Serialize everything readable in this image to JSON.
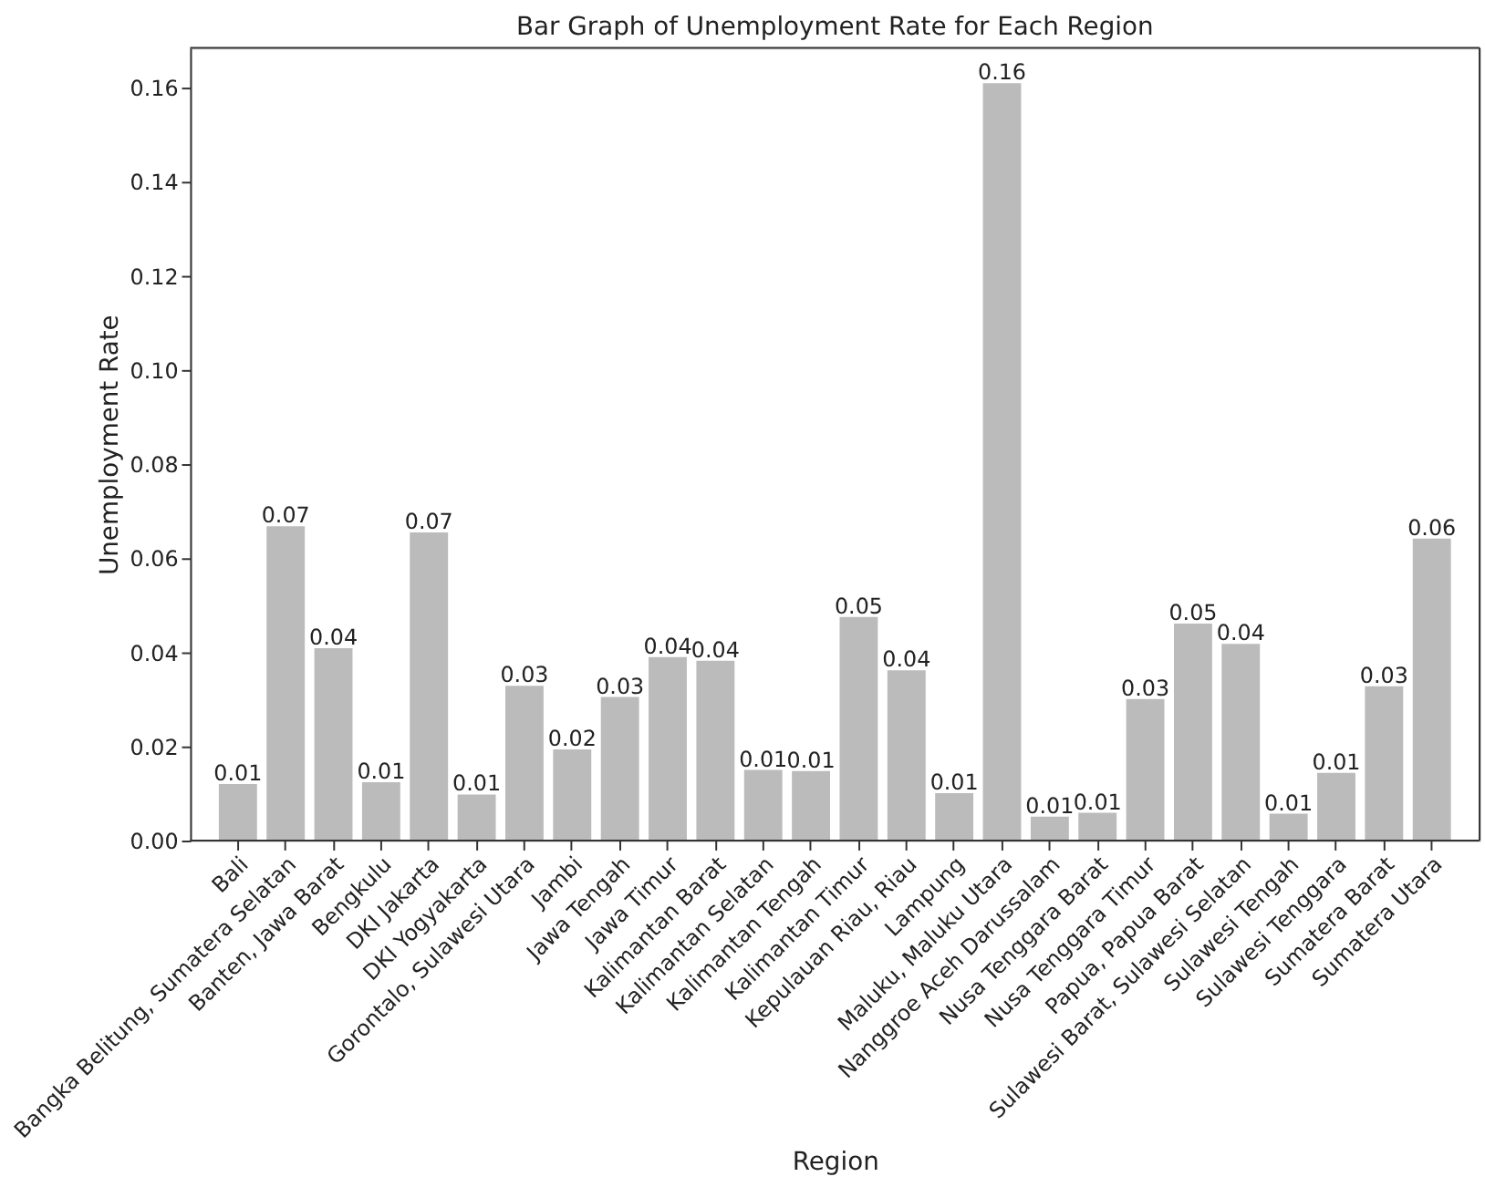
{
  "chart_data": {
    "type": "bar",
    "title": "Bar Graph of Unemployment Rate for Each Region",
    "xlabel": "Region",
    "ylabel": "Unemployment Rate",
    "categories": [
      "Bali",
      "Bangka Belitung, Sumatera Selatan",
      "Banten, Jawa Barat",
      "Bengkulu",
      "DKI Jakarta",
      "DKI Yogyakarta",
      "Gorontalo, Sulawesi Utara",
      "Jambi",
      "Jawa Tengah",
      "Jawa Timur",
      "Kalimantan Barat",
      "Kalimantan Selatan",
      "Kalimantan Tengah",
      "Kalimantan Timur",
      "Kepulauan Riau, Riau",
      "Lampung",
      "Maluku, Maluku Utara",
      "Nanggroe Aceh Darussalam",
      "Nusa Tenggara Barat",
      "Nusa Tenggara Timur",
      "Papua, Papua Barat",
      "Sulawesi Barat, Sulawesi Selatan",
      "Sulawesi Tengah",
      "Sulawesi Tenggara",
      "Sumatera Barat",
      "Sumatera Utara"
    ],
    "values": [
      0.012,
      0.0668,
      0.0409,
      0.0124,
      0.0655,
      0.0098,
      0.0329,
      0.0194,
      0.0305,
      0.039,
      0.0382,
      0.015,
      0.0148,
      0.0475,
      0.0362,
      0.0101,
      0.161,
      0.0051,
      0.0059,
      0.0301,
      0.0461,
      0.0418,
      0.0057,
      0.0144,
      0.0328,
      0.0642
    ],
    "value_labels": [
      "0.01",
      "0.07",
      "0.04",
      "0.01",
      "0.07",
      "0.01",
      "0.03",
      "0.02",
      "0.03",
      "0.04",
      "0.04",
      "0.01",
      "0.01",
      "0.05",
      "0.04",
      "0.01",
      "0.16",
      "0.01",
      "0.01",
      "0.03",
      "0.05",
      "0.04",
      "0.01",
      "0.01",
      "0.03",
      "0.06"
    ],
    "color": "#bbbbbb",
    "ylim": [
      0,
      0.1685
    ],
    "yticks": [
      {
        "value": 0,
        "label": "0.00"
      },
      {
        "value": 0.02,
        "label": "0.02"
      },
      {
        "value": 0.04,
        "label": "0.04"
      },
      {
        "value": 0.06,
        "label": "0.06"
      },
      {
        "value": 0.08,
        "label": "0.08"
      },
      {
        "value": 0.1,
        "label": "0.10"
      },
      {
        "value": 0.12,
        "label": "0.12"
      },
      {
        "value": 0.14,
        "label": "0.14"
      },
      {
        "value": 0.16,
        "label": "0.16"
      }
    ],
    "grid": false
  }
}
